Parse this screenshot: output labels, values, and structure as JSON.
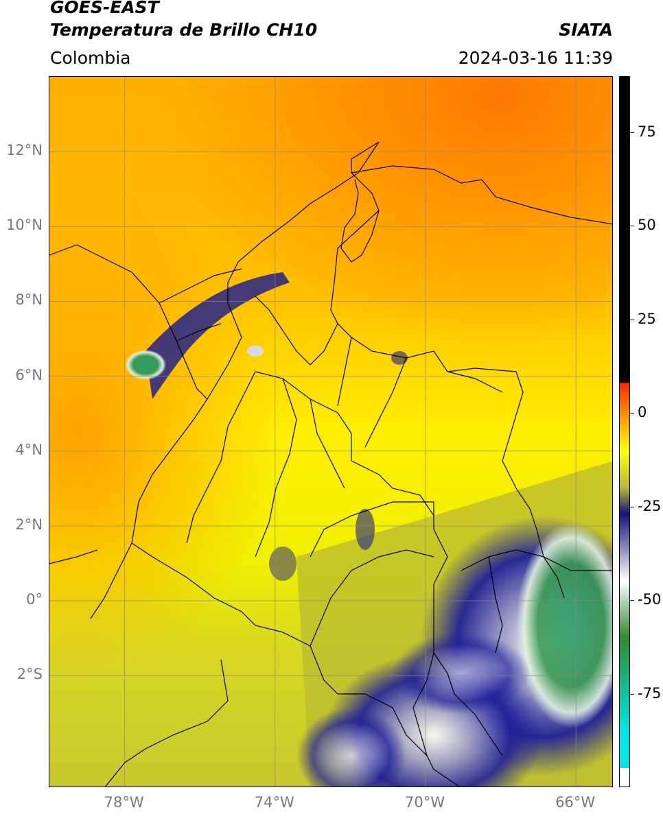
{
  "header": {
    "satellite": "GOES-EAST",
    "product": "Temperatura de Brillo CH10",
    "region": "Colombia",
    "source": "SIATA",
    "datetime": "2024-03-16 11:39"
  },
  "map": {
    "lat_labels": [
      {
        "text": "12°N",
        "lat": 12
      },
      {
        "text": "10°N",
        "lat": 10
      },
      {
        "text": "8°N",
        "lat": 8
      },
      {
        "text": "6°N",
        "lat": 6
      },
      {
        "text": "4°N",
        "lat": 4
      },
      {
        "text": "2°N",
        "lat": 2
      },
      {
        "text": "0°",
        "lat": 0
      },
      {
        "text": "2°S",
        "lat": -2
      }
    ],
    "lon_labels": [
      {
        "text": "78°W",
        "lon": -78
      },
      {
        "text": "74°W",
        "lon": -74
      },
      {
        "text": "70°W",
        "lon": -70
      },
      {
        "text": "66°W",
        "lon": -66
      }
    ],
    "extent": {
      "lon_min": -80,
      "lon_max": -65,
      "lat_min": -5,
      "lat_max": 14
    }
  },
  "colorbar": {
    "vmin": -100,
    "vmax": 90,
    "ticks": [
      {
        "text": "75",
        "value": 75
      },
      {
        "text": "50",
        "value": 50
      },
      {
        "text": "25",
        "value": 25
      },
      {
        "text": "0",
        "value": 0
      },
      {
        "text": "-25",
        "value": -25
      },
      {
        "text": "-50",
        "value": -50
      },
      {
        "text": "-75",
        "value": -75
      }
    ],
    "colors": {
      "black": "#000000",
      "red": "#ff2a00",
      "orange": "#ff8c00",
      "yellow": "#ffff00",
      "olive": "#b8b83a",
      "navy": "#141478",
      "white": "#ffffff",
      "green": "#2e8b2e",
      "cyan": "#00e5e5"
    }
  }
}
